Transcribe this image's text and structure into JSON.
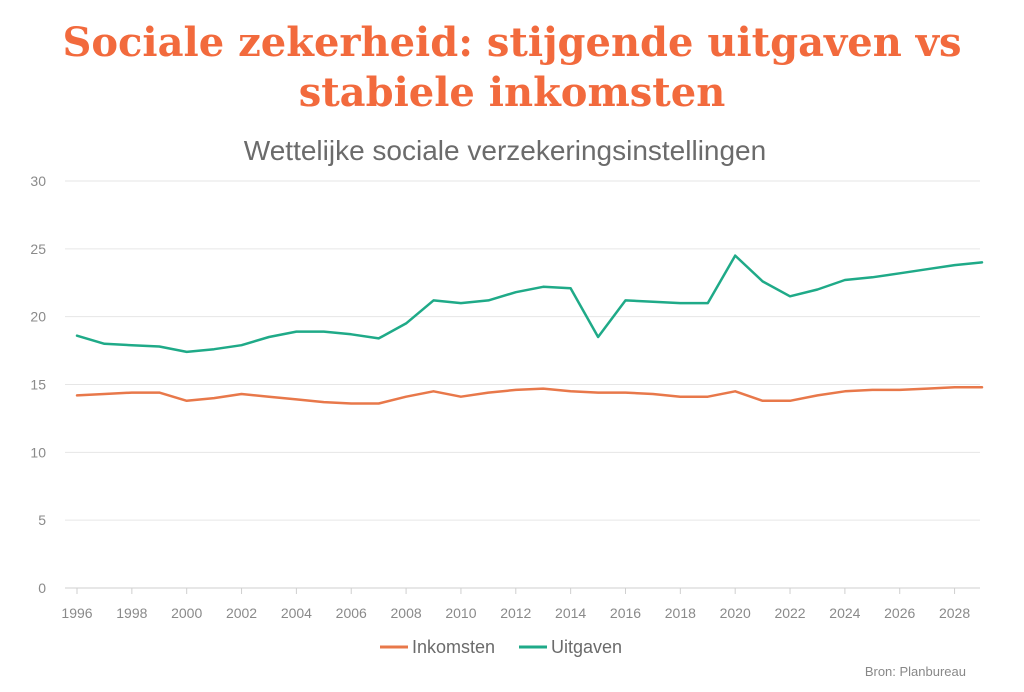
{
  "title": "Sociale zekerheid: stijgende uitgaven vs stabiele inkomsten",
  "subtitle": "Wettelijke sociale verzekeringsinstellingen",
  "source": "Bron: Planbureau",
  "colors": {
    "title": "#f26a3d",
    "inkomsten": "#e8784a",
    "uitgaven": "#1faa88",
    "grid": "#e6e6e6",
    "axis_text": "#8a8a8a"
  },
  "chart_data": {
    "type": "line",
    "ylim": [
      0,
      30
    ],
    "yticks": [
      0,
      5,
      10,
      15,
      20,
      25,
      30
    ],
    "xlim": [
      1996,
      2029
    ],
    "xticks": [
      1996,
      1998,
      2000,
      2002,
      2004,
      2006,
      2008,
      2010,
      2012,
      2014,
      2016,
      2018,
      2020,
      2022,
      2024,
      2026,
      2028
    ],
    "grid": true,
    "legend_position": "bottom",
    "x": [
      1996,
      1997,
      1998,
      1999,
      2000,
      2001,
      2002,
      2003,
      2004,
      2005,
      2006,
      2007,
      2008,
      2009,
      2010,
      2011,
      2012,
      2013,
      2014,
      2015,
      2016,
      2017,
      2018,
      2019,
      2020,
      2021,
      2022,
      2023,
      2024,
      2025,
      2026,
      2027,
      2028,
      2029
    ],
    "series": [
      {
        "name": "Inkomsten",
        "values": [
          14.2,
          14.3,
          14.4,
          14.4,
          13.8,
          14.0,
          14.3,
          14.1,
          13.9,
          13.7,
          13.6,
          13.6,
          14.1,
          14.5,
          14.1,
          14.4,
          14.6,
          14.7,
          14.5,
          14.4,
          14.4,
          14.3,
          14.1,
          14.1,
          14.5,
          13.8,
          13.8,
          14.2,
          14.5,
          14.6,
          14.6,
          14.7,
          14.8,
          14.8
        ]
      },
      {
        "name": "Uitgaven",
        "values": [
          18.6,
          18.0,
          17.9,
          17.8,
          17.4,
          17.6,
          17.9,
          18.5,
          18.9,
          18.9,
          18.7,
          18.4,
          19.5,
          21.2,
          21.0,
          21.2,
          21.8,
          22.2,
          22.1,
          18.5,
          21.2,
          21.1,
          21.0,
          21.0,
          24.5,
          22.6,
          21.5,
          22.0,
          22.7,
          22.9,
          23.2,
          23.5,
          23.8,
          24.0
        ]
      }
    ]
  }
}
